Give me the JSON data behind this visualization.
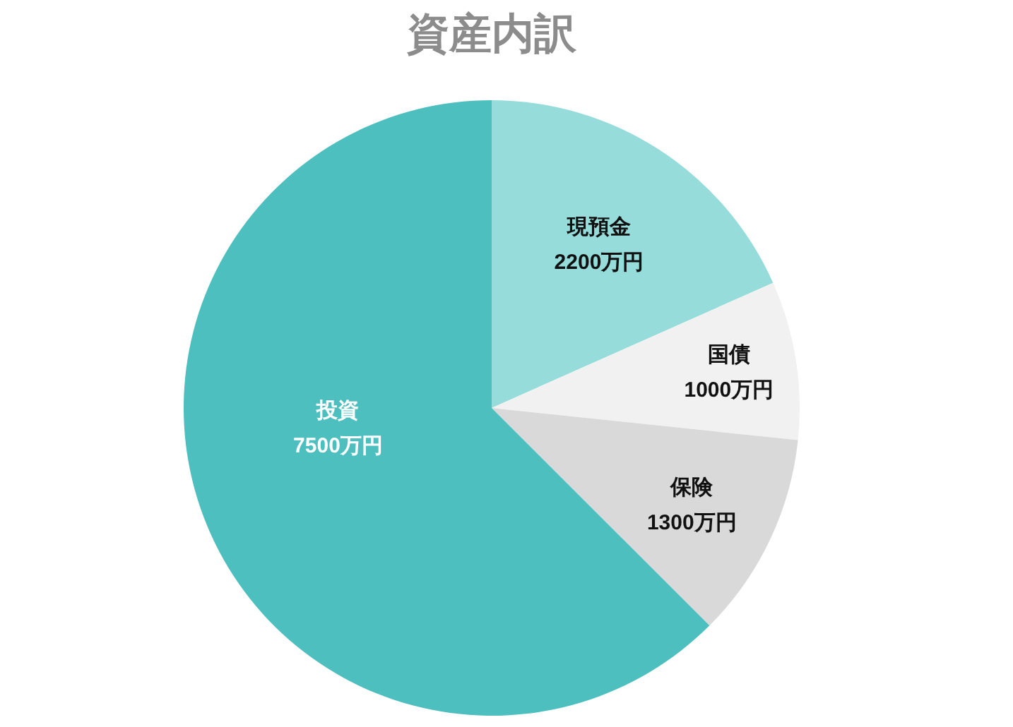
{
  "chart_data": {
    "type": "pie",
    "title": "資産内訳",
    "categories": [
      "現預金",
      "国債",
      "保険",
      "投資"
    ],
    "values": [
      2200,
      1000,
      1300,
      7500
    ],
    "colors": [
      "#96dcda",
      "#f1f1f1",
      "#d9d9d9",
      "#4dbfbf"
    ],
    "value_labels": [
      "2200万円",
      "1000万円",
      "1300万円",
      "7500万円"
    ]
  }
}
